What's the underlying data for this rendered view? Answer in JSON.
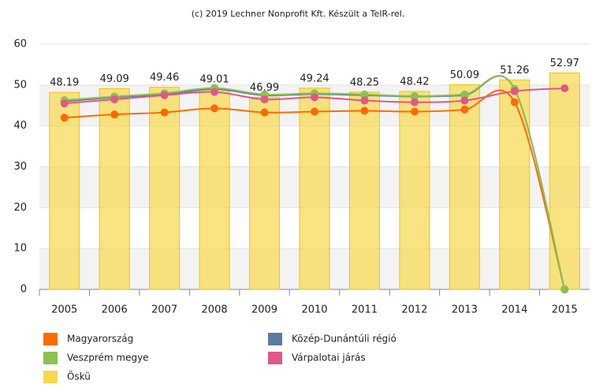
{
  "chart_data": {
    "type": "bar",
    "title": "(c) 2019 Lechner Nonprofit Kft. Készült a TeIR-rel.",
    "categories": [
      "2005",
      "2006",
      "2007",
      "2008",
      "2009",
      "2010",
      "2011",
      "2012",
      "2013",
      "2014",
      "2015"
    ],
    "ylim": [
      0,
      60
    ],
    "yticks": [
      0,
      10,
      20,
      30,
      40,
      50,
      60
    ],
    "grid": true,
    "legend": "bottom",
    "series": [
      {
        "name": "Magyarország",
        "type": "line",
        "color": "#ff6a00",
        "values": [
          42,
          42.8,
          43.3,
          44.3,
          43.3,
          43.5,
          43.7,
          43.5,
          44,
          45.8,
          0
        ]
      },
      {
        "name": "Közép-Dunántúli régió",
        "type": "line",
        "color": "#5b7c9e",
        "values": [
          46,
          47,
          47.7,
          49,
          47.5,
          47.8,
          47.5,
          47.2,
          47.5,
          49,
          0
        ]
      },
      {
        "name": "Veszprém megye",
        "type": "line",
        "color": "#8cc152",
        "values": [
          46.3,
          47.2,
          48,
          49.3,
          47.7,
          48,
          47.7,
          47.3,
          47.7,
          49,
          0
        ]
      },
      {
        "name": "Várpalotai járás",
        "type": "line",
        "color": "#e0578a",
        "values": [
          45.5,
          46.5,
          47.5,
          48.3,
          46.5,
          47,
          46.2,
          45.8,
          46.2,
          48.5,
          49.2
        ]
      },
      {
        "name": "Öskü",
        "type": "bar",
        "color": "#f7d94c",
        "values": [
          48.19,
          49.09,
          49.46,
          49.01,
          46.99,
          49.24,
          48.25,
          48.42,
          50.09,
          51.26,
          52.97
        ]
      }
    ]
  }
}
